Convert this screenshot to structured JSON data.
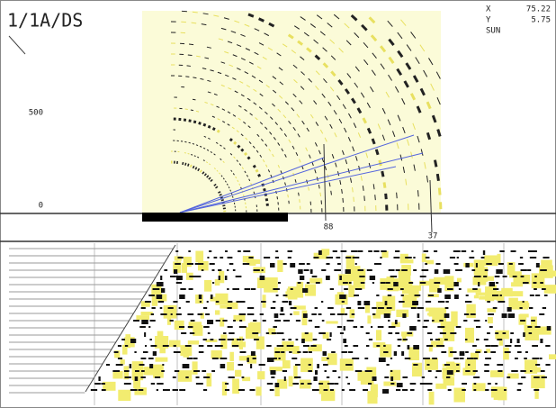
{
  "header": {
    "title": "1/1A/DS"
  },
  "readout": {
    "x_label": "X",
    "x_value": "75.22",
    "y_label": "Y",
    "y_value": "5.75",
    "mode": "SUN"
  },
  "axis_labels": [
    "500",
    "0"
  ],
  "pick_labels": [
    "88",
    "37"
  ]
}
